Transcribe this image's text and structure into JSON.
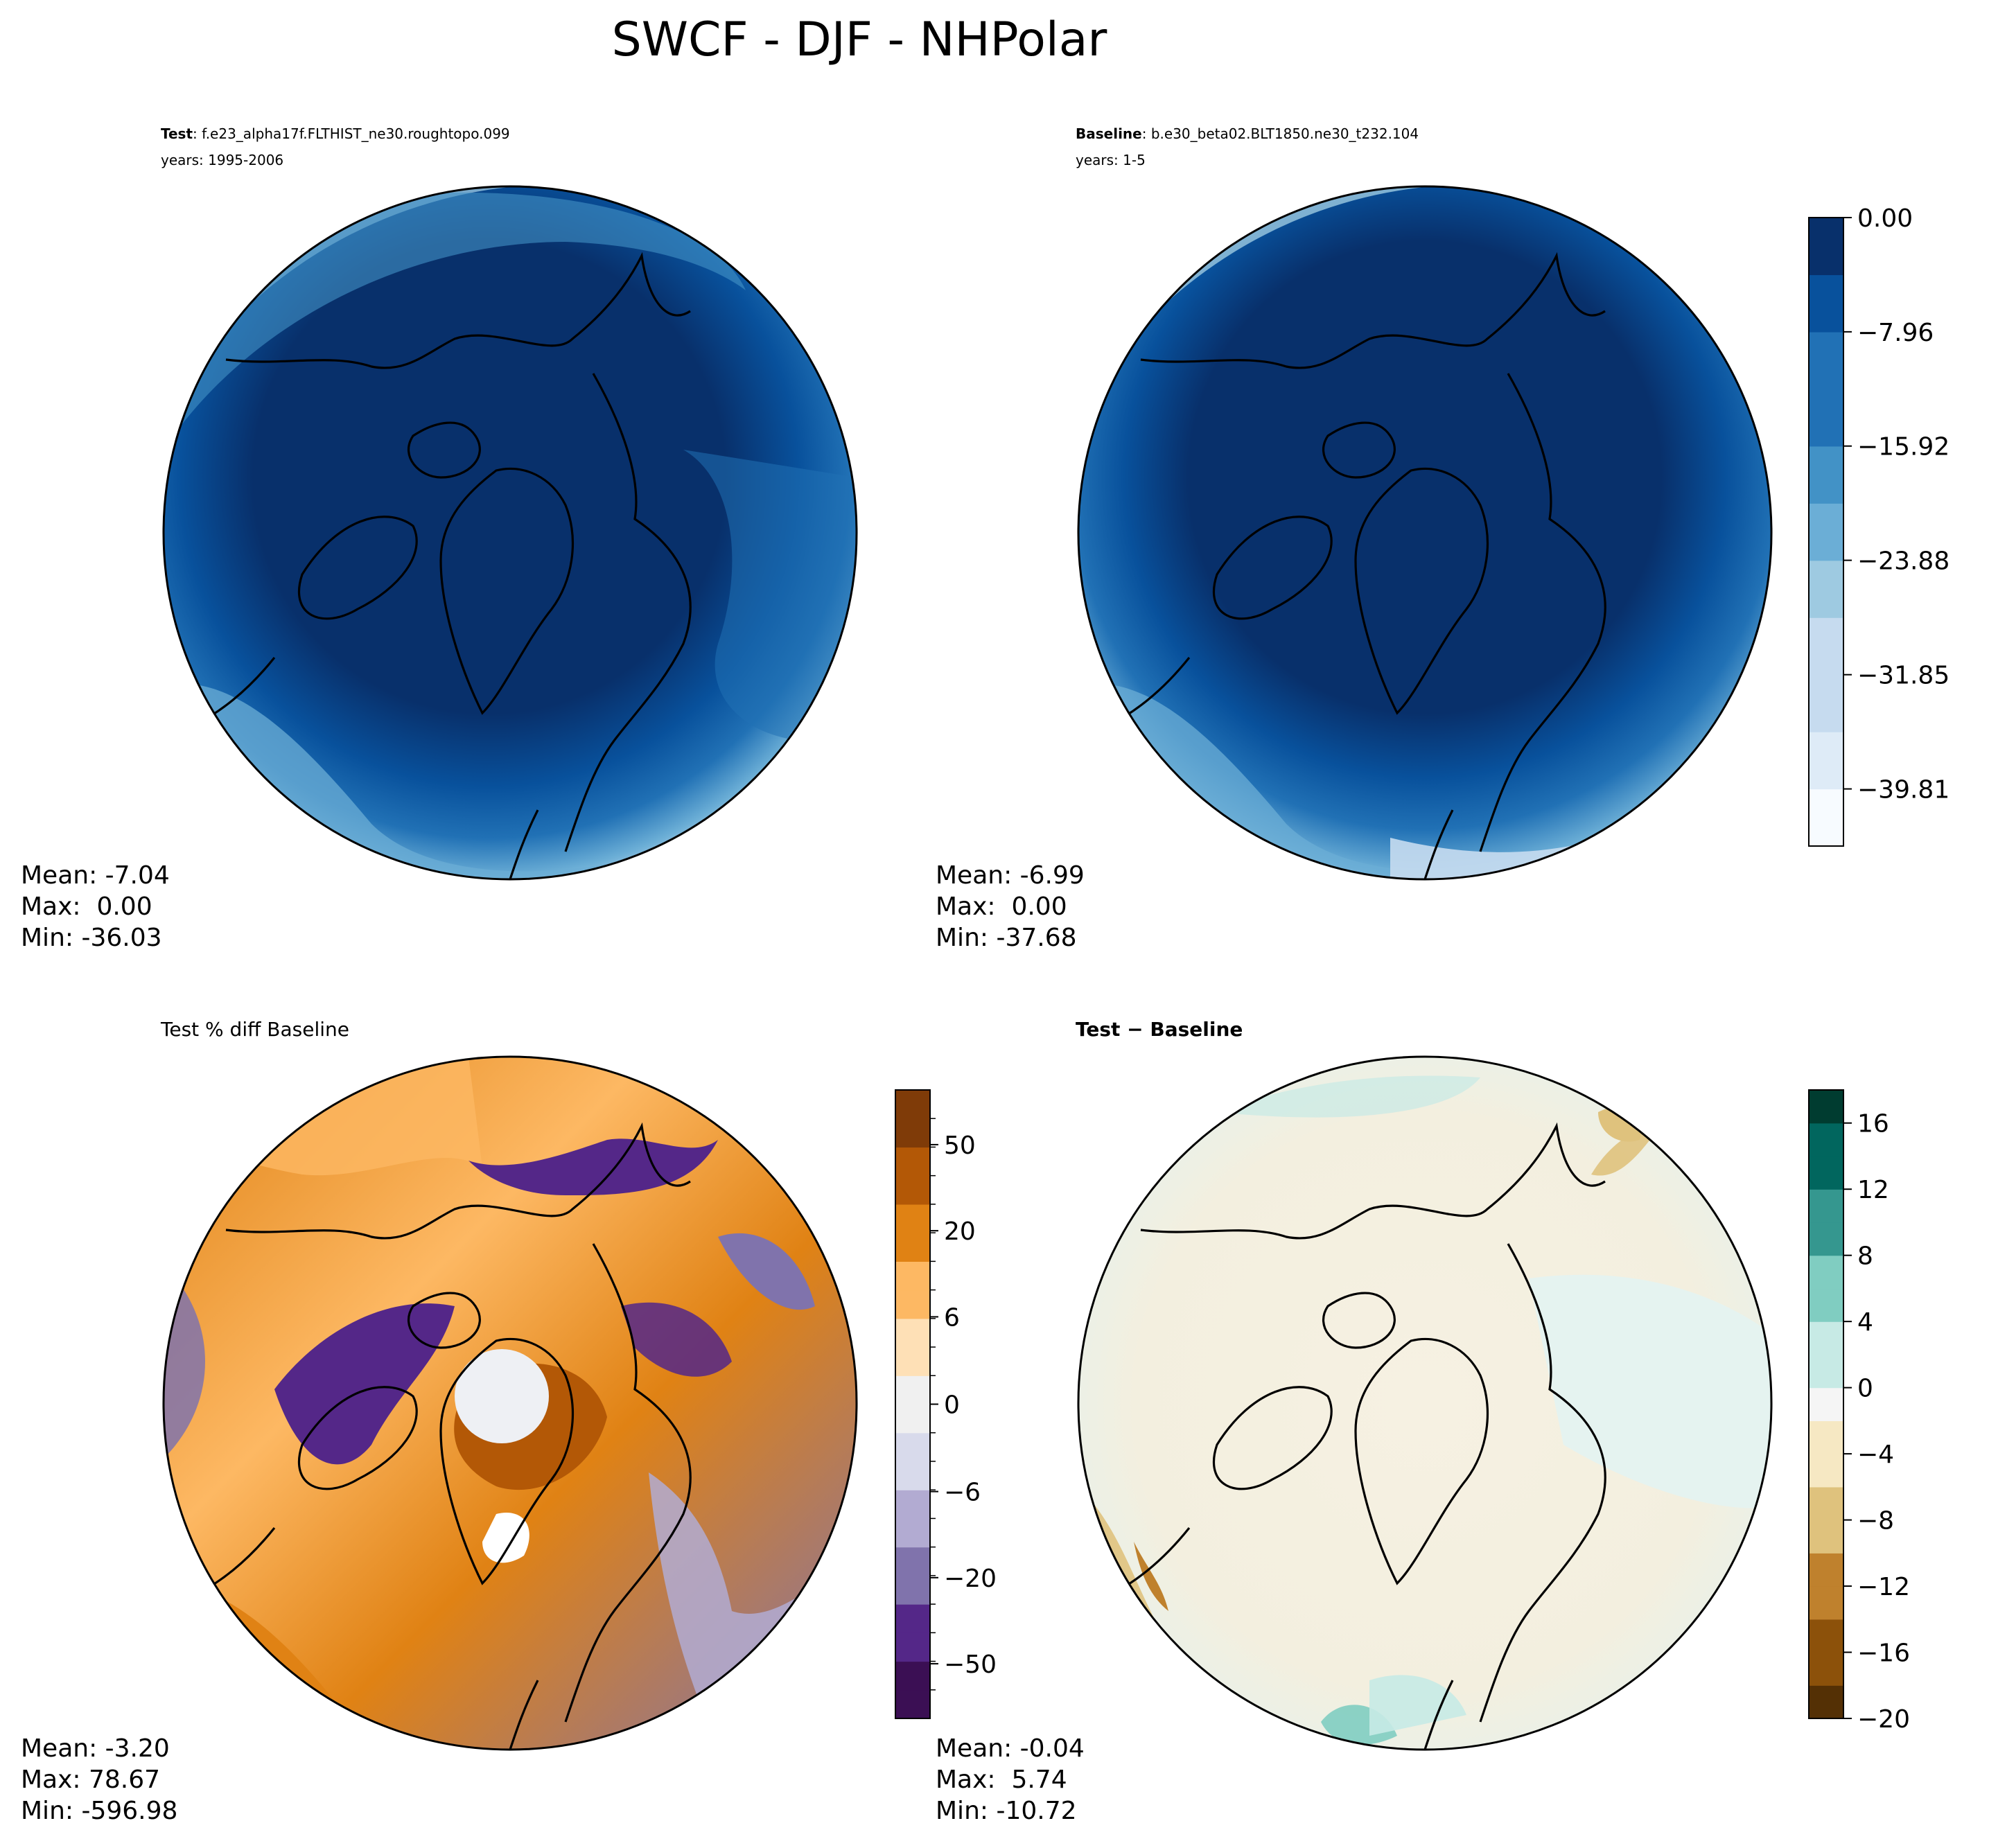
{
  "figure": {
    "title": "SWCF - DJF - NHPolar"
  },
  "panels": {
    "test": {
      "label": "Test",
      "case": ": f.e23_alpha17f.FLTHIST_ne30.roughtopo.099",
      "years": "years: 1995-2006",
      "stats": {
        "mean": "Mean: -7.04",
        "max": "Max:  0.00",
        "min": "Min: -36.03"
      }
    },
    "baseline": {
      "label": "Baseline",
      "case": ": b.e30_beta02.BLT1850.ne30_t232.104",
      "years": "years: 1-5",
      "stats": {
        "mean": "Mean: -6.99",
        "max": "Max:  0.00",
        "min": "Min: -37.68"
      }
    },
    "pctdiff": {
      "title": "Test % diff Baseline",
      "stats": {
        "mean": "Mean: -3.20",
        "max": "Max: 78.67",
        "min": "Min: -596.98"
      }
    },
    "diff": {
      "title": "Test − Baseline",
      "stats": {
        "mean": "Mean: -0.04",
        "max": "Max:  5.74",
        "min": "Min: -10.72"
      }
    }
  },
  "colors": {
    "blues": [
      "#f7fbff",
      "#deebf7",
      "#c6dbef",
      "#9ecae1",
      "#6baed6",
      "#4292c6",
      "#2171b5",
      "#08519c",
      "#08306b"
    ],
    "puor": [
      "#3b0f54",
      "#542788",
      "#8073ac",
      "#b2abd2",
      "#d8daeb",
      "#f0f0f0",
      "#fee0b6",
      "#fdb863",
      "#e08214",
      "#b35806",
      "#7f3b08"
    ],
    "brbg": [
      "#543005",
      "#8c510a",
      "#bf812d",
      "#dfc27d",
      "#f6e8c3",
      "#f5f5f5",
      "#c7eae5",
      "#80cdc1",
      "#35978f",
      "#01665e",
      "#003c30"
    ]
  },
  "chart_data": [
    {
      "type": "heatmap",
      "name": "test_map",
      "projection": "north polar stereographic",
      "variable": "SWCF",
      "season": "DJF",
      "mean": -7.04,
      "max": 0.0,
      "min": -36.03
    },
    {
      "type": "heatmap",
      "name": "baseline_map",
      "projection": "north polar stereographic",
      "variable": "SWCF",
      "season": "DJF",
      "mean": -6.99,
      "max": 0.0,
      "min": -37.68,
      "colorbar": {
        "range": [
          -43.79,
          0
        ],
        "tick_values": [
          0,
          -7.96,
          -15.92,
          -23.88,
          -31.85,
          -39.81
        ],
        "tick_labels": [
          "0.00",
          "−7.96",
          "−15.92",
          "−23.88",
          "−31.85",
          "−39.81"
        ]
      }
    },
    {
      "type": "heatmap",
      "name": "pct_diff_map",
      "projection": "north polar stereographic",
      "mean": -3.2,
      "max": 78.67,
      "min": -596.98,
      "colorbar": {
        "tick_labels": [
          "50",
          "20",
          "6",
          "0",
          "−6",
          "−20",
          "−50"
        ]
      }
    },
    {
      "type": "heatmap",
      "name": "diff_map",
      "projection": "north polar stereographic",
      "mean": -0.04,
      "max": 5.74,
      "min": -10.72,
      "colorbar": {
        "range": [
          -20,
          18
        ],
        "tick_values": [
          16,
          12,
          8,
          4,
          0,
          -4,
          -8,
          -12,
          -16,
          -20
        ],
        "tick_labels": [
          "16",
          "12",
          "8",
          "4",
          "0",
          "−4",
          "−8",
          "−12",
          "−16",
          "−20"
        ]
      }
    }
  ]
}
